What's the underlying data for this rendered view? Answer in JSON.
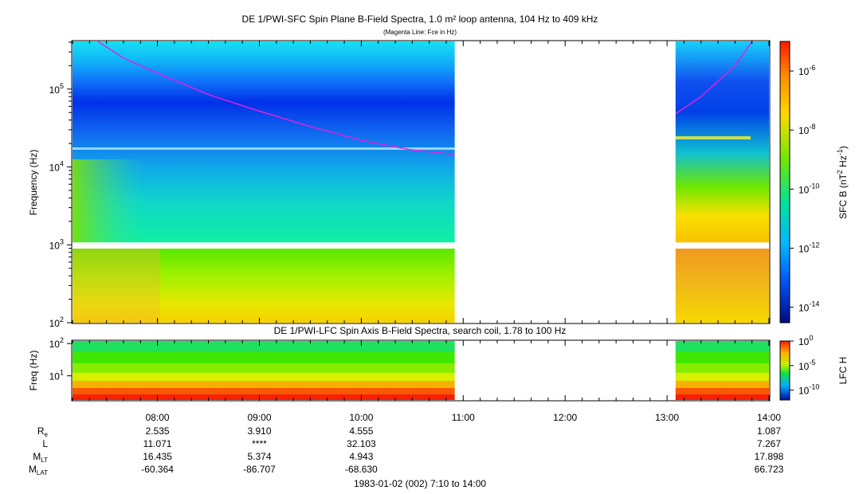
{
  "chart_data": [
    {
      "type": "heatmap",
      "title": "DE 1/PWI-SFC  Spin Plane B-Field Spectra, 1.0 m² loop antenna, 104 Hz to 409 kHz",
      "subtitle": "(Magenta Line: Fce in Hz)",
      "ylabel": "Frequency (Hz)",
      "y_scale": "log",
      "ylim": [
        100,
        409000
      ],
      "y_ticks": [
        {
          "value": 100,
          "label": "10^2"
        },
        {
          "value": 1000,
          "label": "10^3"
        },
        {
          "value": 10000,
          "label": "10^4"
        },
        {
          "value": 100000,
          "label": "10^5"
        }
      ],
      "colorbar": {
        "label": "SFC B (nT^2 Hz^-1)",
        "scale": "log",
        "range": [
          3e-15,
          1e-05
        ],
        "ticks": [
          {
            "value": 1e-06,
            "label": "10^-6"
          },
          {
            "value": 1e-08,
            "label": "10^-8"
          },
          {
            "value": 1e-10,
            "label": "10^-10"
          },
          {
            "value": 1e-12,
            "label": "10^-12"
          },
          {
            "value": 1e-14,
            "label": "10^-14"
          }
        ]
      },
      "data_gap": {
        "start": "10:55",
        "end": "13:05"
      },
      "series": [
        {
          "name": "Fce",
          "color": "#e020e0",
          "points": [
            {
              "t": "07:25",
              "f": 409000
            },
            {
              "t": "07:40",
              "f": 250000
            },
            {
              "t": "08:00",
              "f": 160000
            },
            {
              "t": "08:30",
              "f": 85000
            },
            {
              "t": "09:00",
              "f": 52000
            },
            {
              "t": "09:30",
              "f": 33000
            },
            {
              "t": "10:00",
              "f": 22000
            },
            {
              "t": "10:30",
              "f": 16500
            },
            {
              "t": "10:55",
              "f": 14500
            },
            {
              "t": "13:05",
              "f": 48000
            },
            {
              "t": "13:20",
              "f": 80000
            },
            {
              "t": "13:40",
              "f": 200000
            },
            {
              "t": "13:50",
              "f": 409000
            }
          ]
        }
      ]
    },
    {
      "type": "heatmap",
      "title": "DE 1/PWI-LFC  Spin Axis B-Field Spectra, search coil, 1.78 to 100 Hz",
      "ylabel": "Freq (Hz)",
      "y_scale": "log",
      "ylim": [
        1.78,
        120
      ],
      "y_ticks": [
        {
          "value": 10,
          "label": "10^1"
        },
        {
          "value": 100,
          "label": "10^2"
        }
      ],
      "colorbar": {
        "label": "LFC H",
        "scale": "log",
        "range": [
          1e-12,
          1
        ],
        "ticks": [
          {
            "value": 1,
            "label": "10^0"
          },
          {
            "value": 1e-05,
            "label": "10^-5"
          },
          {
            "value": 1e-10,
            "label": "10^-10"
          }
        ]
      },
      "data_gap": {
        "start": "10:55",
        "end": "13:05"
      }
    }
  ],
  "x_axis": {
    "start": "07:10",
    "end": "14:00",
    "ticks": [
      "08:00",
      "09:00",
      "10:00",
      "11:00",
      "12:00",
      "13:00",
      "14:00"
    ],
    "caption": "1983-01-02 (002) 7:10 to 14:00"
  },
  "ephemeris": {
    "rows": [
      {
        "key": "re",
        "label": "R",
        "sub": "e",
        "values": [
          "2.535",
          "3.910",
          "4.555",
          "",
          "",
          "",
          "1.087"
        ]
      },
      {
        "key": "l",
        "label": "L",
        "sub": "",
        "values": [
          "11.071",
          "****",
          "32.103",
          "",
          "",
          "",
          "7.267"
        ]
      },
      {
        "key": "mlt",
        "label": "M",
        "sub": "LT",
        "values": [
          "16.435",
          "5.374",
          "4.943",
          "",
          "",
          "",
          "17.898"
        ]
      },
      {
        "key": "mlat",
        "label": "M",
        "sub": "LAT",
        "values": [
          "-60.364",
          "-86.707",
          "-68.630",
          "",
          "",
          "",
          "66.723"
        ]
      }
    ]
  }
}
